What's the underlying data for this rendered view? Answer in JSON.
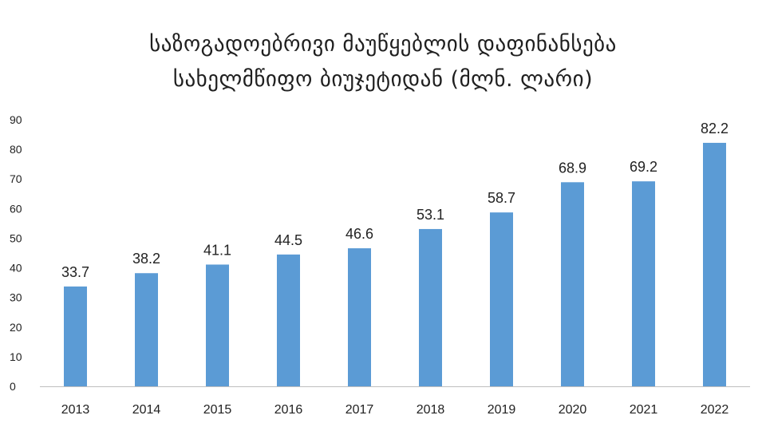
{
  "chart_data": {
    "type": "bar",
    "title_lines": [
      "საზოგადოებრივი მაუწყებლის დაფინანსება",
      "სახელმწიფო ბიუჯეტიდან (მლნ. ლარი)"
    ],
    "categories": [
      "2013",
      "2014",
      "2015",
      "2016",
      "2017",
      "2018",
      "2019",
      "2020",
      "2021",
      "2022"
    ],
    "values": [
      33.7,
      38.2,
      41.1,
      44.5,
      46.6,
      53.1,
      58.7,
      68.9,
      69.2,
      82.2
    ],
    "value_labels": [
      "33.7",
      "38.2",
      "41.1",
      "44.5",
      "46.6",
      "53.1",
      "58.7",
      "68.9",
      "69.2",
      "82.2"
    ],
    "yticks": [
      "0",
      "10",
      "20",
      "30",
      "40",
      "50",
      "60",
      "70",
      "80",
      "90"
    ],
    "ylim": [
      0,
      90
    ],
    "grid": false,
    "legend": "none",
    "bar_color": "#5b9bd5"
  }
}
